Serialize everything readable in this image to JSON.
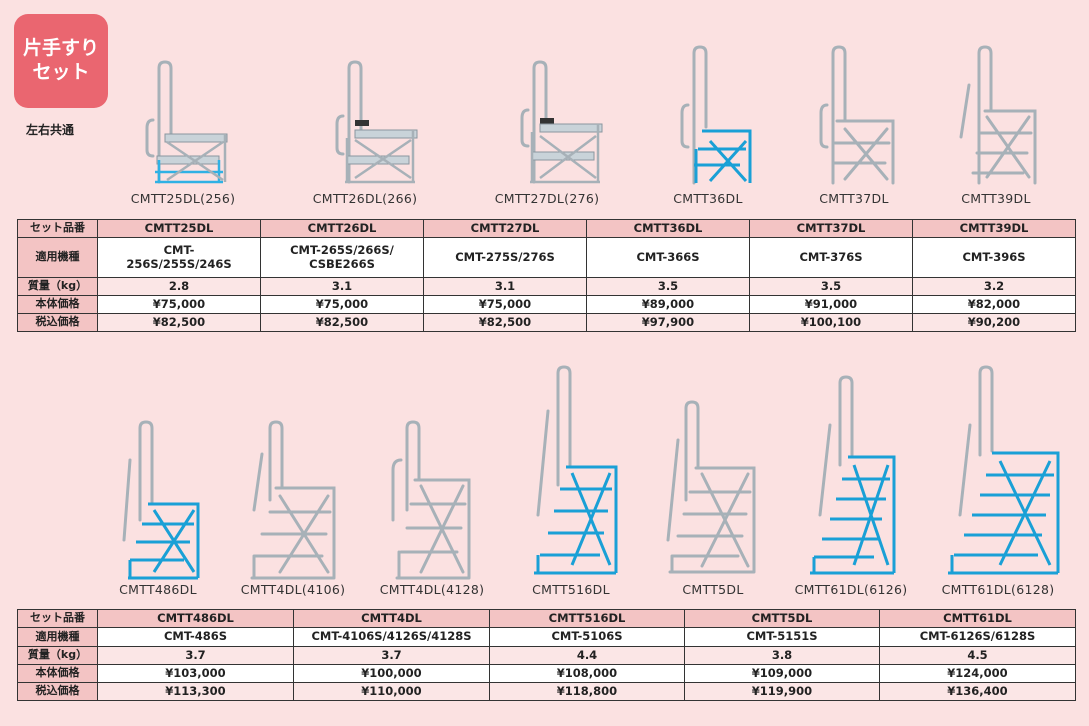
{
  "badge": {
    "text": "片手すり\nセット",
    "sub": "左右共通"
  },
  "colors": {
    "badge": "#ea6670",
    "header_bg": "#f3c4c4",
    "steel": "#b9c2c8",
    "blue_step": "#1aa0d6"
  },
  "top": {
    "captions": [
      "CMTT25DL(256)",
      "CMTT26DL(266)",
      "CMTT27DL(276)",
      "CMTT36DL",
      "CMTT37DL",
      "CMTT39DL"
    ],
    "table": {
      "labels": [
        "セット品番",
        "適用機種",
        "質量（kg）",
        "本体価格",
        "税込価格"
      ],
      "models": [
        "CMTT25DL",
        "CMTT26DL",
        "CMTT27DL",
        "CMTT36DL",
        "CMTT37DL",
        "CMTT39DL"
      ],
      "compat": [
        "CMT-\n256S/255S/246S",
        "CMT-265S/266S/\nCSBE266S",
        "CMT-275S/276S",
        "CMT-366S",
        "CMT-376S",
        "CMT-396S"
      ],
      "mass": [
        "2.8",
        "3.1",
        "3.1",
        "3.5",
        "3.5",
        "3.2"
      ],
      "price": [
        "¥75,000",
        "¥75,000",
        "¥75,000",
        "¥89,000",
        "¥91,000",
        "¥82,000"
      ],
      "price_tax": [
        "¥82,500",
        "¥82,500",
        "¥82,500",
        "¥97,900",
        "¥100,100",
        "¥90,200"
      ]
    }
  },
  "bottom": {
    "captions": [
      "CMTT486DL",
      "CMTT4DL(4106)",
      "CMTT4DL(4128)",
      "CMTT516DL",
      "CMTT5DL",
      "CMTT61DL(6126)",
      "CMTT61DL(6128)"
    ],
    "table": {
      "labels": [
        "セット品番",
        "適用機種",
        "質量（kg）",
        "本体価格",
        "税込価格"
      ],
      "models": [
        "CMTT486DL",
        "CMTT4DL",
        "CMTT516DL",
        "CMTT5DL",
        "CMTT61DL"
      ],
      "compat": [
        "CMT-486S",
        "CMT-4106S/4126S/4128S",
        "CMT-5106S",
        "CMT-5151S",
        "CMT-6126S/6128S"
      ],
      "mass": [
        "3.7",
        "3.7",
        "4.4",
        "3.8",
        "4.5"
      ],
      "price": [
        "¥103,000",
        "¥100,000",
        "¥108,000",
        "¥109,000",
        "¥124,000"
      ],
      "price_tax": [
        "¥113,300",
        "¥110,000",
        "¥118,800",
        "¥119,900",
        "¥136,400"
      ]
    }
  }
}
